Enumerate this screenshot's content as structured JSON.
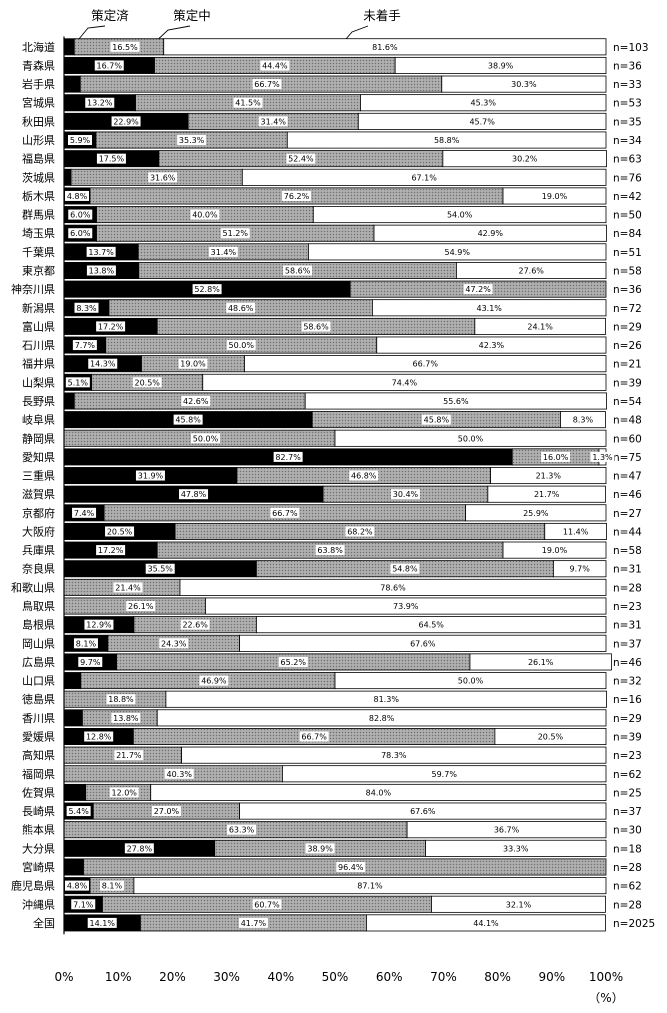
{
  "colors": {
    "策定済": "#000000",
    "策定中": "#9a9a9a",
    "未着手": "#ffffff"
  },
  "chart_data": {
    "type": "bar",
    "orientation": "horizontal",
    "stacked": true,
    "x_unit_label": "（%）",
    "xlim": [
      0,
      100
    ],
    "x_ticks": [
      "0%",
      "10%",
      "20%",
      "30%",
      "40%",
      "50%",
      "60%",
      "70%",
      "80%",
      "90%",
      "100%"
    ],
    "legend": [
      "策定済",
      "策定中",
      "未着手"
    ],
    "legend_placement": "top",
    "categories": [
      "北海道",
      "青森県",
      "岩手県",
      "宮城県",
      "秋田県",
      "山形県",
      "福島県",
      "茨城県",
      "栃木県",
      "群馬県",
      "埼玉県",
      "千葉県",
      "東京都",
      "神奈川県",
      "新潟県",
      "富山県",
      "石川県",
      "福井県",
      "山梨県",
      "長野県",
      "岐阜県",
      "静岡県",
      "愛知県",
      "三重県",
      "滋賀県",
      "京都府",
      "大阪府",
      "兵庫県",
      "奈良県",
      "和歌山県",
      "鳥取県",
      "島根県",
      "岡山県",
      "広島県",
      "山口県",
      "徳島県",
      "香川県",
      "愛媛県",
      "高知県",
      "福岡県",
      "佐賀県",
      "長崎県",
      "熊本県",
      "大分県",
      "宮崎県",
      "鹿児島県",
      "沖縄県",
      "全国"
    ],
    "n_labels": [
      "n=103",
      "n=36",
      "n=33",
      "n=53",
      "n=35",
      "n=34",
      "n=63",
      "n=76",
      "n=42",
      "n=50",
      "n=84",
      "n=51",
      "n=58",
      "n=36",
      "n=72",
      "n=29",
      "n=26",
      "n=21",
      "n=39",
      "n=54",
      "n=48",
      "n=60",
      "n=75",
      "n=47",
      "n=46",
      "n=27",
      "n=44",
      "n=58",
      "n=31",
      "n=28",
      "n=23",
      "n=31",
      "n=37",
      "n=46",
      "n=32",
      "n=16",
      "n=29",
      "n=39",
      "n=23",
      "n=62",
      "n=25",
      "n=37",
      "n=30",
      "n=18",
      "n=28",
      "n=62",
      "n=28",
      "n=2025"
    ],
    "series": [
      {
        "name": "策定済",
        "values": [
          1.9,
          16.7,
          3.0,
          13.2,
          22.9,
          5.9,
          17.5,
          1.3,
          4.8,
          6.0,
          6.0,
          13.7,
          13.8,
          52.8,
          8.3,
          17.2,
          7.7,
          14.3,
          5.1,
          1.9,
          45.8,
          0,
          82.7,
          31.9,
          47.8,
          7.4,
          20.5,
          17.2,
          35.5,
          0,
          0,
          12.9,
          8.1,
          9.7,
          3.1,
          0,
          3.4,
          12.8,
          0,
          0,
          4.0,
          5.4,
          0,
          27.8,
          3.6,
          4.8,
          7.1,
          14.1
        ]
      },
      {
        "name": "策定中",
        "values": [
          16.5,
          44.4,
          66.7,
          41.5,
          31.4,
          35.3,
          52.4,
          31.6,
          76.2,
          40.0,
          51.2,
          31.4,
          58.6,
          47.2,
          48.6,
          58.6,
          50.0,
          19.0,
          20.5,
          42.6,
          45.8,
          50.0,
          16.0,
          46.8,
          30.4,
          66.7,
          68.2,
          63.8,
          54.8,
          21.4,
          26.1,
          22.6,
          24.3,
          65.2,
          46.9,
          18.8,
          13.8,
          66.7,
          21.7,
          40.3,
          12.0,
          27.0,
          63.3,
          38.9,
          96.4,
          8.1,
          60.7,
          41.7
        ]
      },
      {
        "name": "未着手",
        "values": [
          81.6,
          38.9,
          30.3,
          45.3,
          45.7,
          58.8,
          30.2,
          67.1,
          19.0,
          54.0,
          42.9,
          54.9,
          27.6,
          0,
          43.1,
          24.1,
          42.3,
          66.7,
          74.4,
          55.6,
          8.3,
          50.0,
          1.3,
          21.3,
          21.7,
          25.9,
          11.4,
          19.0,
          9.7,
          78.6,
          73.9,
          64.5,
          67.6,
          26.1,
          50.0,
          81.3,
          82.8,
          20.5,
          78.3,
          59.7,
          84.0,
          67.6,
          36.7,
          33.3,
          0,
          87.1,
          32.1,
          44.1
        ]
      }
    ],
    "labels": [
      [
        "1.9%",
        "16.5%",
        "81.6%"
      ],
      [
        "16.7%",
        "44.4%",
        "38.9%"
      ],
      [
        "3.0%",
        "66.7%",
        "30.3%"
      ],
      [
        "13.2%",
        "41.5%",
        "45.3%"
      ],
      [
        "22.9%",
        "31.4%",
        "45.7%"
      ],
      [
        "5.9%",
        "35.3%",
        "58.8%"
      ],
      [
        "17.5%",
        "52.4%",
        "30.2%"
      ],
      [
        "1.3%",
        "31.6%",
        "67.1%"
      ],
      [
        "4.8%",
        "76.2%",
        "19.0%"
      ],
      [
        "6.0%",
        "40.0%",
        "54.0%"
      ],
      [
        "6.0%",
        "51.2%",
        "42.9%"
      ],
      [
        "13.7%",
        "31.4%",
        "54.9%"
      ],
      [
        "13.8%",
        "58.6%",
        "27.6%"
      ],
      [
        "52.8%",
        "47.2%",
        ""
      ],
      [
        "8.3%",
        "48.6%",
        "43.1%"
      ],
      [
        "17.2%",
        "58.6%",
        "24.1%"
      ],
      [
        "7.7%",
        "50.0%",
        "42.3%"
      ],
      [
        "14.3%",
        "19.0%",
        "66.7%"
      ],
      [
        "5.1%",
        "20.5%",
        "74.4%"
      ],
      [
        "1.9%",
        "42.6%",
        "55.6%"
      ],
      [
        "45.8%",
        "45.8%",
        "8.3%"
      ],
      [
        "",
        "50.0%",
        "50.0%"
      ],
      [
        "82.7%",
        "16.0%",
        "1.3%"
      ],
      [
        "31.9%",
        "46.8%",
        "21.3%"
      ],
      [
        "47.8%",
        "30.4%",
        "21.7%"
      ],
      [
        "7.4%",
        "66.7%",
        "25.9%"
      ],
      [
        "20.5%",
        "68.2%",
        "11.4%"
      ],
      [
        "17.2%",
        "63.8%",
        "19.0%"
      ],
      [
        "35.5%",
        "54.8%",
        "9.7%"
      ],
      [
        "",
        "21.4%",
        "78.6%"
      ],
      [
        "",
        "26.1%",
        "73.9%"
      ],
      [
        "12.9%",
        "22.6%",
        "64.5%"
      ],
      [
        "8.1%",
        "24.3%",
        "67.6%"
      ],
      [
        "9.7%",
        "65.2%",
        "26.1%"
      ],
      [
        "3.1%",
        "46.9%",
        "50.0%"
      ],
      [
        "",
        "18.8%",
        "81.3%"
      ],
      [
        "3.4%",
        "13.8%",
        "82.8%"
      ],
      [
        "12.8%",
        "66.7%",
        "20.5%"
      ],
      [
        "",
        "21.7%",
        "78.3%"
      ],
      [
        "",
        "40.3%",
        "59.7%"
      ],
      [
        "4.0%",
        "12.0%",
        "84.0%"
      ],
      [
        "5.4%",
        "27.0%",
        "67.6%"
      ],
      [
        "",
        "63.3%",
        "36.7%"
      ],
      [
        "27.8%",
        "38.9%",
        "33.3%"
      ],
      [
        "3.6%",
        "96.4%",
        ""
      ],
      [
        "4.8%",
        "8.1%",
        "87.1%"
      ],
      [
        "7.1%",
        "60.7%",
        "32.1%"
      ],
      [
        "14.1%",
        "41.7%",
        "44.1%"
      ]
    ]
  }
}
